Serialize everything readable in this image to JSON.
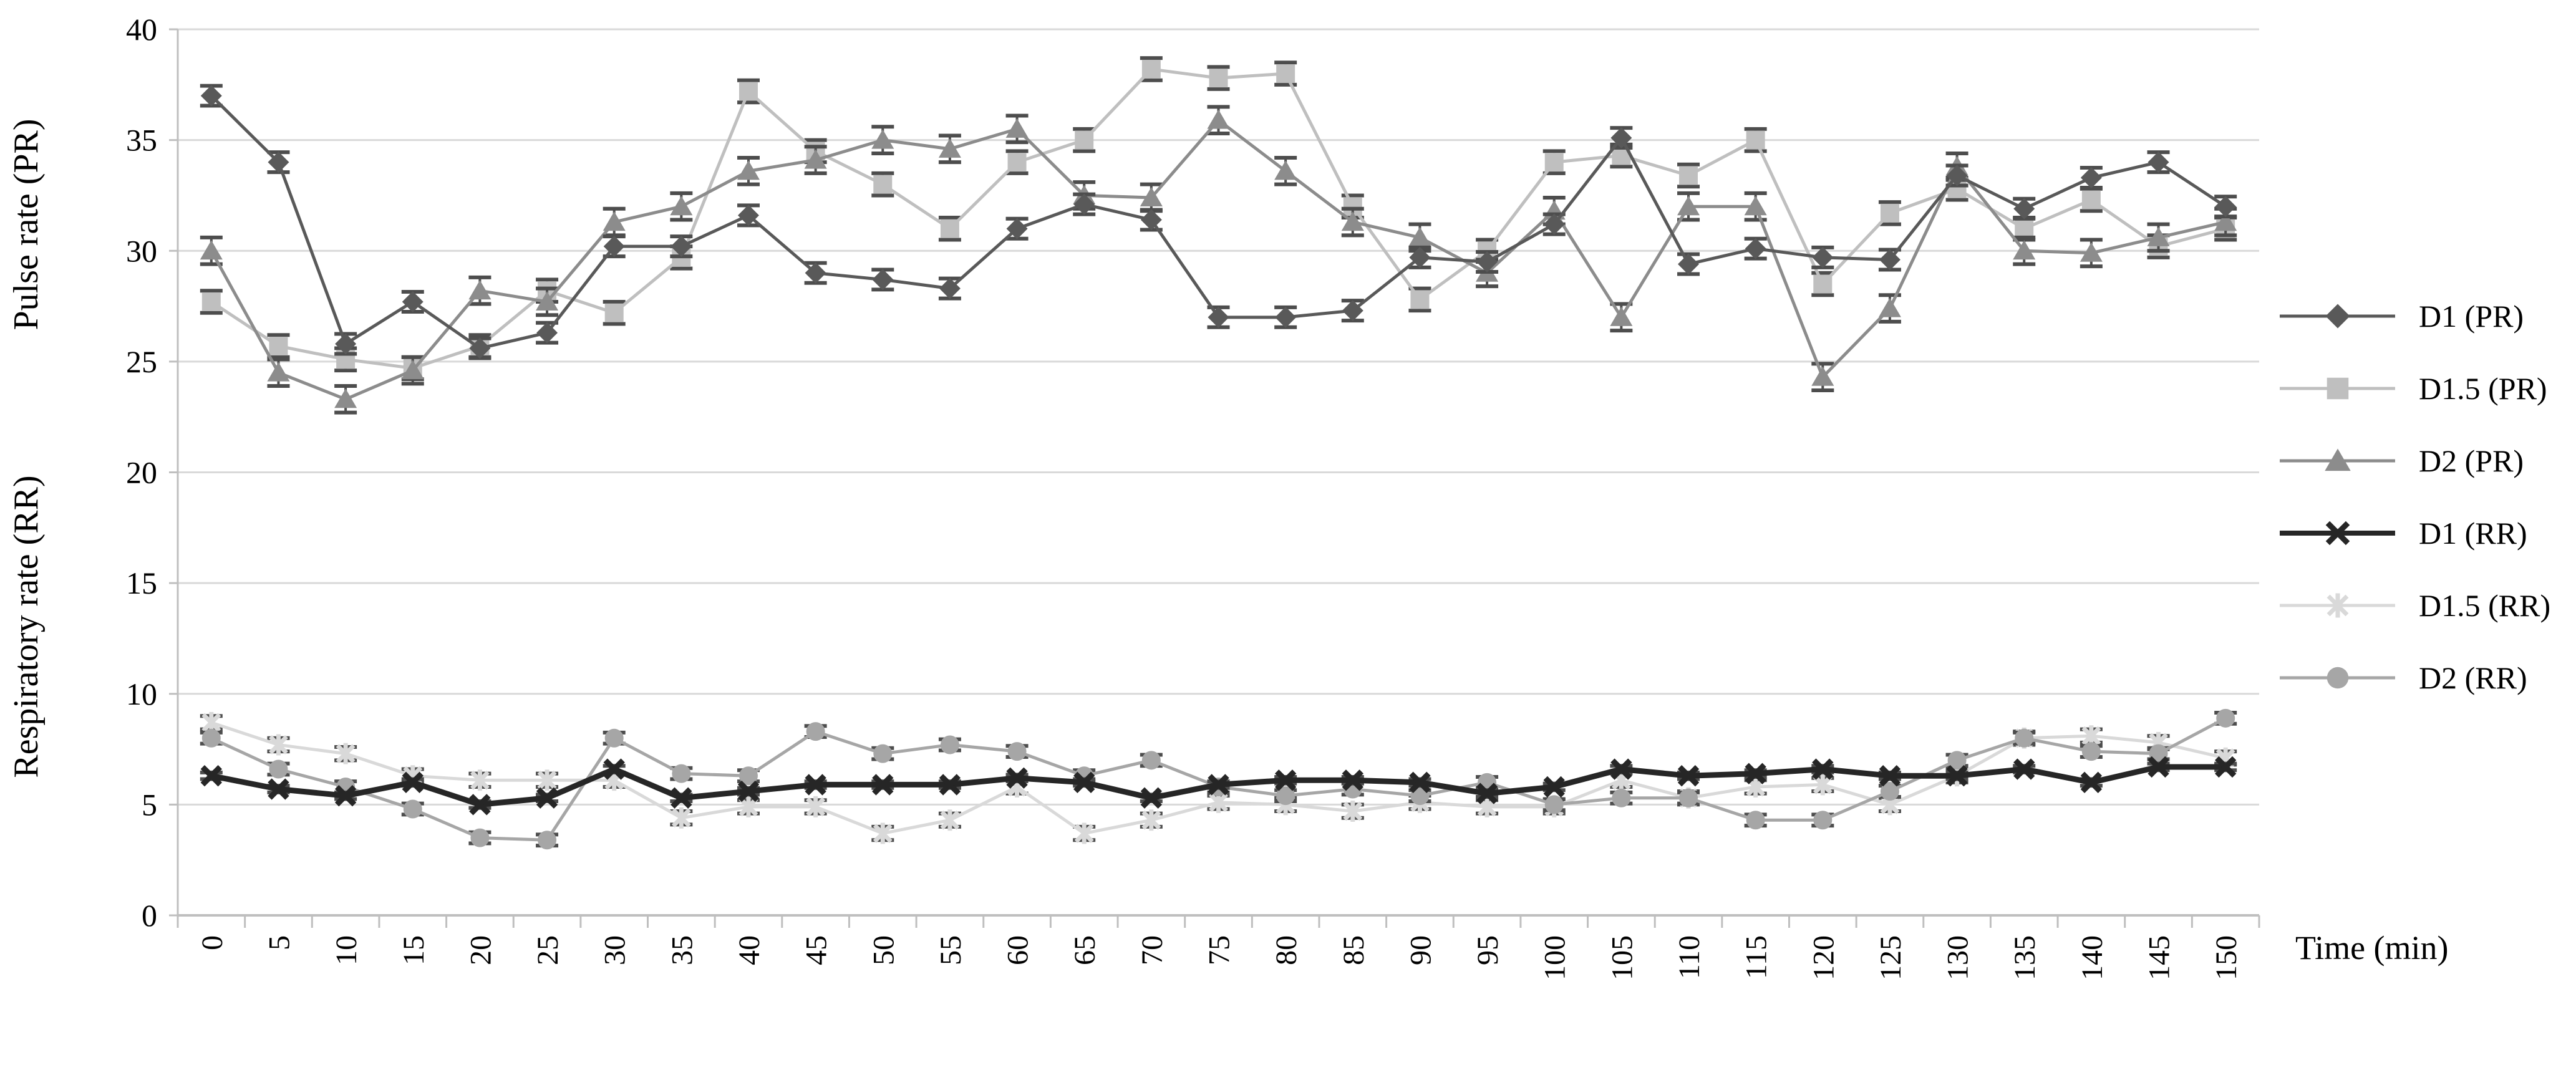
{
  "figure": {
    "xlabel": "Time (min)",
    "ylabel_top": "Pulse rate (PR)",
    "ylabel_bottom": "Respiratory rate (RR)",
    "background_color": "#ffffff",
    "gridline_color": "#d9d9d9",
    "axis_color": "#bfbfbf",
    "errorbar_color": "#4d4d4d",
    "text_color": "#000000"
  },
  "chart_data": {
    "type": "line",
    "title": "",
    "xlabel": "Time (min)",
    "ylabel": "Pulse rate (PR) / Respiratory rate (RR)",
    "ylim": [
      0,
      40
    ],
    "yticks": [
      0,
      5,
      10,
      15,
      20,
      25,
      30,
      35,
      40
    ],
    "grid": true,
    "legend_position": "right",
    "x": [
      0,
      5,
      10,
      15,
      20,
      25,
      30,
      35,
      40,
      45,
      50,
      55,
      60,
      65,
      70,
      75,
      80,
      85,
      90,
      95,
      100,
      105,
      110,
      115,
      120,
      125,
      130,
      135,
      140,
      145,
      150
    ],
    "x_tick_labels": [
      "0",
      "5",
      "10",
      "15",
      "20",
      "25",
      "30",
      "35",
      "40",
      "45",
      "50",
      "55",
      "60",
      "65",
      "70",
      "75",
      "80",
      "85",
      "90",
      "95",
      "100",
      "105",
      "110",
      "115",
      "120",
      "125",
      "130",
      "135",
      "140",
      "145",
      "150"
    ],
    "series": [
      {
        "name": "D1.5 (PR)",
        "marker": "square",
        "color": "#bfbfbf",
        "line_width": 5,
        "error": 0.5,
        "values": [
          27.7,
          25.7,
          25.1,
          24.7,
          25.7,
          28.2,
          27.2,
          29.7,
          37.2,
          34.5,
          33,
          31,
          34,
          35,
          38.2,
          37.8,
          38,
          32,
          27.8,
          30,
          34,
          34.3,
          33.4,
          35,
          28.5,
          31.7,
          32.8,
          31,
          32.3,
          30.2,
          31
        ]
      },
      {
        "name": "D2 (PR)",
        "marker": "triangle",
        "color": "#8c8c8c",
        "line_width": 5,
        "error": 0.6,
        "values": [
          30,
          24.5,
          23.3,
          24.6,
          28.2,
          27.7,
          31.3,
          32,
          33.6,
          34.1,
          35,
          34.6,
          35.5,
          32.5,
          32.4,
          35.9,
          33.6,
          31.3,
          30.6,
          29,
          31.8,
          27,
          32,
          32,
          24.3,
          27.4,
          33.8,
          30,
          29.9,
          30.6,
          31.3
        ]
      },
      {
        "name": "D1 (PR)",
        "marker": "diamond",
        "color": "#595959",
        "line_width": 5,
        "error": 0.45,
        "values": [
          37,
          34,
          25.8,
          27.7,
          25.6,
          26.3,
          30.2,
          30.2,
          31.6,
          29,
          28.7,
          28.3,
          31,
          32.1,
          31.4,
          27,
          27,
          27.3,
          29.7,
          29.5,
          31.2,
          35.1,
          29.4,
          30.1,
          29.7,
          29.6,
          33.4,
          31.9,
          33.3,
          34,
          32
        ]
      },
      {
        "name": "D1.5 (RR)",
        "marker": "star",
        "color": "#d9d9d9",
        "line_width": 5,
        "error": 0.3,
        "values": [
          8.7,
          7.7,
          7.3,
          6.3,
          6.1,
          6.1,
          6.1,
          4.4,
          4.9,
          4.9,
          3.7,
          4.3,
          5.8,
          3.7,
          4.3,
          5.1,
          5,
          4.7,
          5.1,
          4.9,
          4.9,
          6.1,
          5.3,
          5.8,
          5.9,
          5,
          6.3,
          8,
          8.1,
          7.8,
          7.1
        ]
      },
      {
        "name": "D2 (RR)",
        "marker": "circle",
        "color": "#a6a6a6",
        "line_width": 5,
        "error": 0.25,
        "values": [
          8,
          6.6,
          5.8,
          4.8,
          3.5,
          3.4,
          8,
          6.4,
          6.3,
          8.3,
          7.3,
          7.7,
          7.4,
          6.3,
          7,
          5.8,
          5.4,
          5.7,
          5.4,
          6,
          5,
          5.3,
          5.3,
          4.3,
          4.3,
          5.6,
          7,
          8,
          7.4,
          7.3,
          8.9
        ]
      },
      {
        "name": "D1 (RR)",
        "marker": "x",
        "color": "#262626",
        "line_width": 9,
        "error": 0.15,
        "values": [
          6.3,
          5.7,
          5.4,
          6,
          5,
          5.3,
          6.6,
          5.3,
          5.6,
          5.9,
          5.9,
          5.9,
          6.2,
          6,
          5.3,
          5.9,
          6.1,
          6.1,
          6,
          5.5,
          5.8,
          6.6,
          6.3,
          6.4,
          6.6,
          6.3,
          6.3,
          6.6,
          6,
          6.7,
          6.7
        ]
      }
    ],
    "legend_order": [
      "D1 (PR)",
      "D1.5 (PR)",
      "D2 (PR)",
      "D1 (RR)",
      "D1.5 (RR)",
      "D2 (RR)"
    ]
  }
}
